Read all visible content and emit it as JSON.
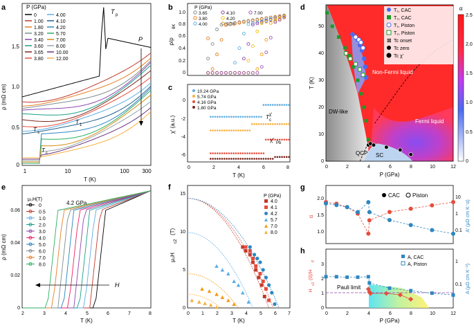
{
  "figure": {
    "panel_labels": [
      "a",
      "b",
      "c",
      "d",
      "e",
      "f",
      "g",
      "h"
    ]
  },
  "panel_a": {
    "legend_title": "P (GPa)",
    "legend_col1": [
      "0",
      "1.00",
      "1.80",
      "3.20",
      "3.40",
      "3.60",
      "3.65",
      "3.80"
    ],
    "legend_col2": [
      "4.00",
      "4.10",
      "4.20",
      "5.70",
      "7.00",
      "8.00",
      "10.00",
      "12.00"
    ],
    "colors_col1": [
      "#000000",
      "#c0392b",
      "#e67e22",
      "#7f8c8d",
      "#8e44ad",
      "#16a085",
      "#7b241c",
      "#e74c3c"
    ],
    "colors_col2": [
      "#5dade2",
      "#1f618d",
      "#2e86c1",
      "#27ae60",
      "#d68910",
      "#95a5a6",
      "#6c3483",
      "#f5b041"
    ],
    "ylabel": "ρ (mΩ cm)",
    "xlabel": "T (K)",
    "yticks": [
      "0",
      "0.5",
      "1.0",
      "1.5"
    ],
    "xticks": [
      "1",
      "10",
      "100",
      "300"
    ],
    "annotations": {
      "tp": "T",
      "tp_sub": "p",
      "p_arrow": "P",
      "ts": "T",
      "ts_sub": "s",
      "t1": "T",
      "t1_sub": "1",
      "tc": "T",
      "tc_sub": "c"
    }
  },
  "panel_b": {
    "legend_title": "P (GPa)",
    "legend_entries": [
      "3.65",
      "3.80",
      "4.00",
      "4.10",
      "4.20",
      "5.70",
      "7.00"
    ],
    "colors": [
      "#7f8c8d",
      "#e67e22",
      "#5dade2",
      "#8e44ad",
      "#f1c40f",
      "#f39c12",
      "#9b59b6"
    ],
    "ylabel": "ρ/ρ",
    "ylabel_sub": "8K",
    "yticks": [
      "0",
      "0.2",
      "0.4",
      "0.6",
      "0.8",
      "1.0"
    ],
    "xticks": [
      "0",
      "2",
      "4",
      "6",
      "8"
    ]
  },
  "panel_c": {
    "legend_entries": [
      "10.24 GPa",
      "5.74 GPa",
      "4.16 GPa",
      "1.80 GPa"
    ],
    "colors": [
      "#5dade2",
      "#f5b041",
      "#e74c3c",
      "#7b241c"
    ],
    "ylabel": "χ′ (a.u.)",
    "xlabel": "T (K)",
    "yticks": [
      "0",
      "-2",
      "-4",
      "-6"
    ],
    "xticks": [
      "0",
      "2",
      "4",
      "6",
      "8"
    ],
    "annotations": {
      "tcchi": "T",
      "tcchi_sub": "c",
      "tcchi_sup": "χ′",
      "chipb": "χ′",
      "chipb_sub": "Pb"
    }
  },
  "panel_d": {
    "ylabel": "T (K)",
    "xlabel": "P (GPa)",
    "yticks": [
      "0",
      "10",
      "20",
      "30",
      "40",
      "50"
    ],
    "xticks": [
      "0",
      "2",
      "4",
      "6",
      "8",
      "10",
      "12"
    ],
    "colorbar_label": "α",
    "colorbar_ticks": [
      "0",
      "0.5",
      "1.0",
      "1.5",
      "2.0",
      "2.5"
    ],
    "legend_entries": [
      "T₁, CAC",
      "T₂, CAC",
      "T₁, Piston",
      "T₂, Piston",
      "Tc onset",
      "Tc zero",
      "Tc χ′"
    ],
    "region_labels": {
      "nfl": "Non-Fermi liquid",
      "fl": "Fermi liquid",
      "dw": "DW-like",
      "sc": "SC",
      "qcp": "QCP"
    }
  },
  "panel_e": {
    "legend_title": "μ₀H(T)",
    "legend_entries": [
      "0",
      "0.5",
      "1.0",
      "2.0",
      "3.0",
      "4.0",
      "5.0",
      "6.0",
      "7.0",
      "8.0"
    ],
    "colors": [
      "#000000",
      "#c0392b",
      "#5dade2",
      "#16a085",
      "#8e44ad",
      "#e91e63",
      "#2980b9",
      "#7f8c8d",
      "#e67e22",
      "#27ae60"
    ],
    "pressure_label": "4.2 GPa",
    "ylabel": "ρ (mΩ cm)",
    "xlabel": "T (K)",
    "yticks": [
      "0",
      "0.02",
      "0.04",
      "0.06"
    ],
    "xticks": [
      "2",
      "3",
      "4",
      "5",
      "6",
      "7",
      "8"
    ],
    "arrow_label": "H"
  },
  "panel_f": {
    "legend_title": "P (GPa)",
    "legend_entries": [
      "4.0",
      "4.1",
      "4.2",
      "5.7",
      "7.0",
      "8.0"
    ],
    "colors": [
      "#c0392b",
      "#e74c3c",
      "#2e86c1",
      "#5dade2",
      "#f39c12",
      "#f5b041"
    ],
    "ylabel": "μ₀H",
    "ylabel_sub": "c2",
    "ylabel_tail": " (T)",
    "xlabel": "T (K)",
    "yticks": [
      "0",
      "5",
      "10",
      "15"
    ],
    "xticks": [
      "0",
      "1",
      "2",
      "3",
      "4",
      "5",
      "6",
      "7"
    ]
  },
  "panel_g": {
    "legend_entries": [
      "CAC",
      "Piston"
    ],
    "ylabel_left": "α",
    "ylabel_right": "A′ (μΩ cm K⁻α)",
    "yticks_left": [
      "1.0",
      "1.5",
      "2.0"
    ],
    "yticks_right": [
      "0.1",
      "1",
      "10"
    ]
  },
  "panel_h": {
    "legend_entries": [
      "A, CAC",
      "A, Piston"
    ],
    "ylabel_left": "H",
    "ylabel_left_sub": "c2",
    "ylabel_left_tail": "(0)/H",
    "ylabel_left_sub2": "P",
    "ylabel_right": "A (μΩ cm K⁻²)",
    "yticks_left": [
      "0",
      "1",
      "2",
      "3"
    ],
    "yticks_right": [
      "0.1",
      "1"
    ],
    "xticks": [
      "0",
      "2",
      "4",
      "6",
      "8",
      "10",
      "12"
    ],
    "xlabel": "P (GPa)",
    "pauli": "Pauli limit"
  },
  "chart_data": [
    {
      "panel": "d",
      "type": "scatter",
      "xlabel": "P (GPa)",
      "ylabel": "T (K)",
      "ylim": [
        0,
        58
      ],
      "xlim": [
        0,
        12
      ],
      "series": [
        {
          "name": "T₁, CAC",
          "x": [
            2.5,
            3.0,
            3.2,
            3.4,
            3.6,
            3.7,
            3.8
          ],
          "y": [
            47,
            45,
            43,
            41,
            38,
            35,
            31
          ]
        },
        {
          "name": "T₂, CAC",
          "x": [
            0.1,
            0.6,
            1.2,
            1.8,
            2.2,
            2.6,
            3.0,
            3.3,
            3.6,
            3.8,
            4.0
          ],
          "y": [
            55,
            50,
            46,
            42,
            39,
            35,
            30,
            25,
            20,
            15,
            8
          ]
        },
        {
          "name": "T₁, Piston",
          "x": [
            2.8,
            3.1,
            3.3,
            3.5
          ],
          "y": [
            46,
            45,
            44,
            42
          ]
        },
        {
          "name": "T₂, Piston",
          "x": [
            1.9,
            2.3,
            2.8,
            3.2,
            3.5
          ],
          "y": [
            40,
            38,
            36,
            34,
            32
          ]
        },
        {
          "name": "Tc zero",
          "x": [
            4.0,
            4.2,
            4.5,
            5.7,
            7.0,
            8.0
          ],
          "y": [
            6,
            6.5,
            6,
            5.2,
            4.2,
            2.5
          ]
        }
      ]
    },
    {
      "panel": "f",
      "type": "scatter",
      "xlabel": "T (K)",
      "ylabel": "μ₀Hc2 (T)",
      "ylim": [
        0,
        16
      ],
      "xlim": [
        0,
        7
      ],
      "series": [
        {
          "name": "4.0",
          "x": [
            3.8,
            4.0,
            4.3,
            4.5,
            4.7,
            4.9,
            5.1,
            5.3
          ],
          "y": [
            8,
            7.5,
            7,
            6,
            5,
            4,
            3,
            1.5
          ]
        },
        {
          "name": "4.1",
          "x": [
            4.0,
            4.3,
            4.5,
            4.7,
            5.0,
            5.2,
            5.4,
            5.6
          ],
          "y": [
            8,
            7.5,
            6.5,
            5.5,
            4.5,
            3.5,
            2.5,
            1
          ]
        },
        {
          "name": "4.2",
          "x": [
            4.3,
            4.6,
            4.8,
            5.0,
            5.2,
            5.4,
            5.6,
            5.8,
            6.0
          ],
          "y": [
            8,
            7,
            6.5,
            6,
            5,
            4,
            3,
            2,
            0.5
          ]
        },
        {
          "name": "5.7",
          "x": [
            2.0,
            2.4,
            2.8,
            3.2,
            3.5,
            3.8,
            4.2
          ],
          "y": [
            5.5,
            5,
            4.5,
            3.5,
            3,
            2,
            0.8
          ]
        },
        {
          "name": "7.0",
          "x": [
            1.0,
            1.5,
            2.0,
            2.4,
            2.8,
            3.2
          ],
          "y": [
            2.5,
            2.2,
            1.8,
            1.4,
            1,
            0.5
          ]
        },
        {
          "name": "8.0",
          "x": [
            0.3,
            0.8,
            1.2,
            1.6,
            2.0
          ],
          "y": [
            1,
            0.8,
            0.6,
            0.4,
            0.1
          ]
        }
      ]
    }
  ]
}
